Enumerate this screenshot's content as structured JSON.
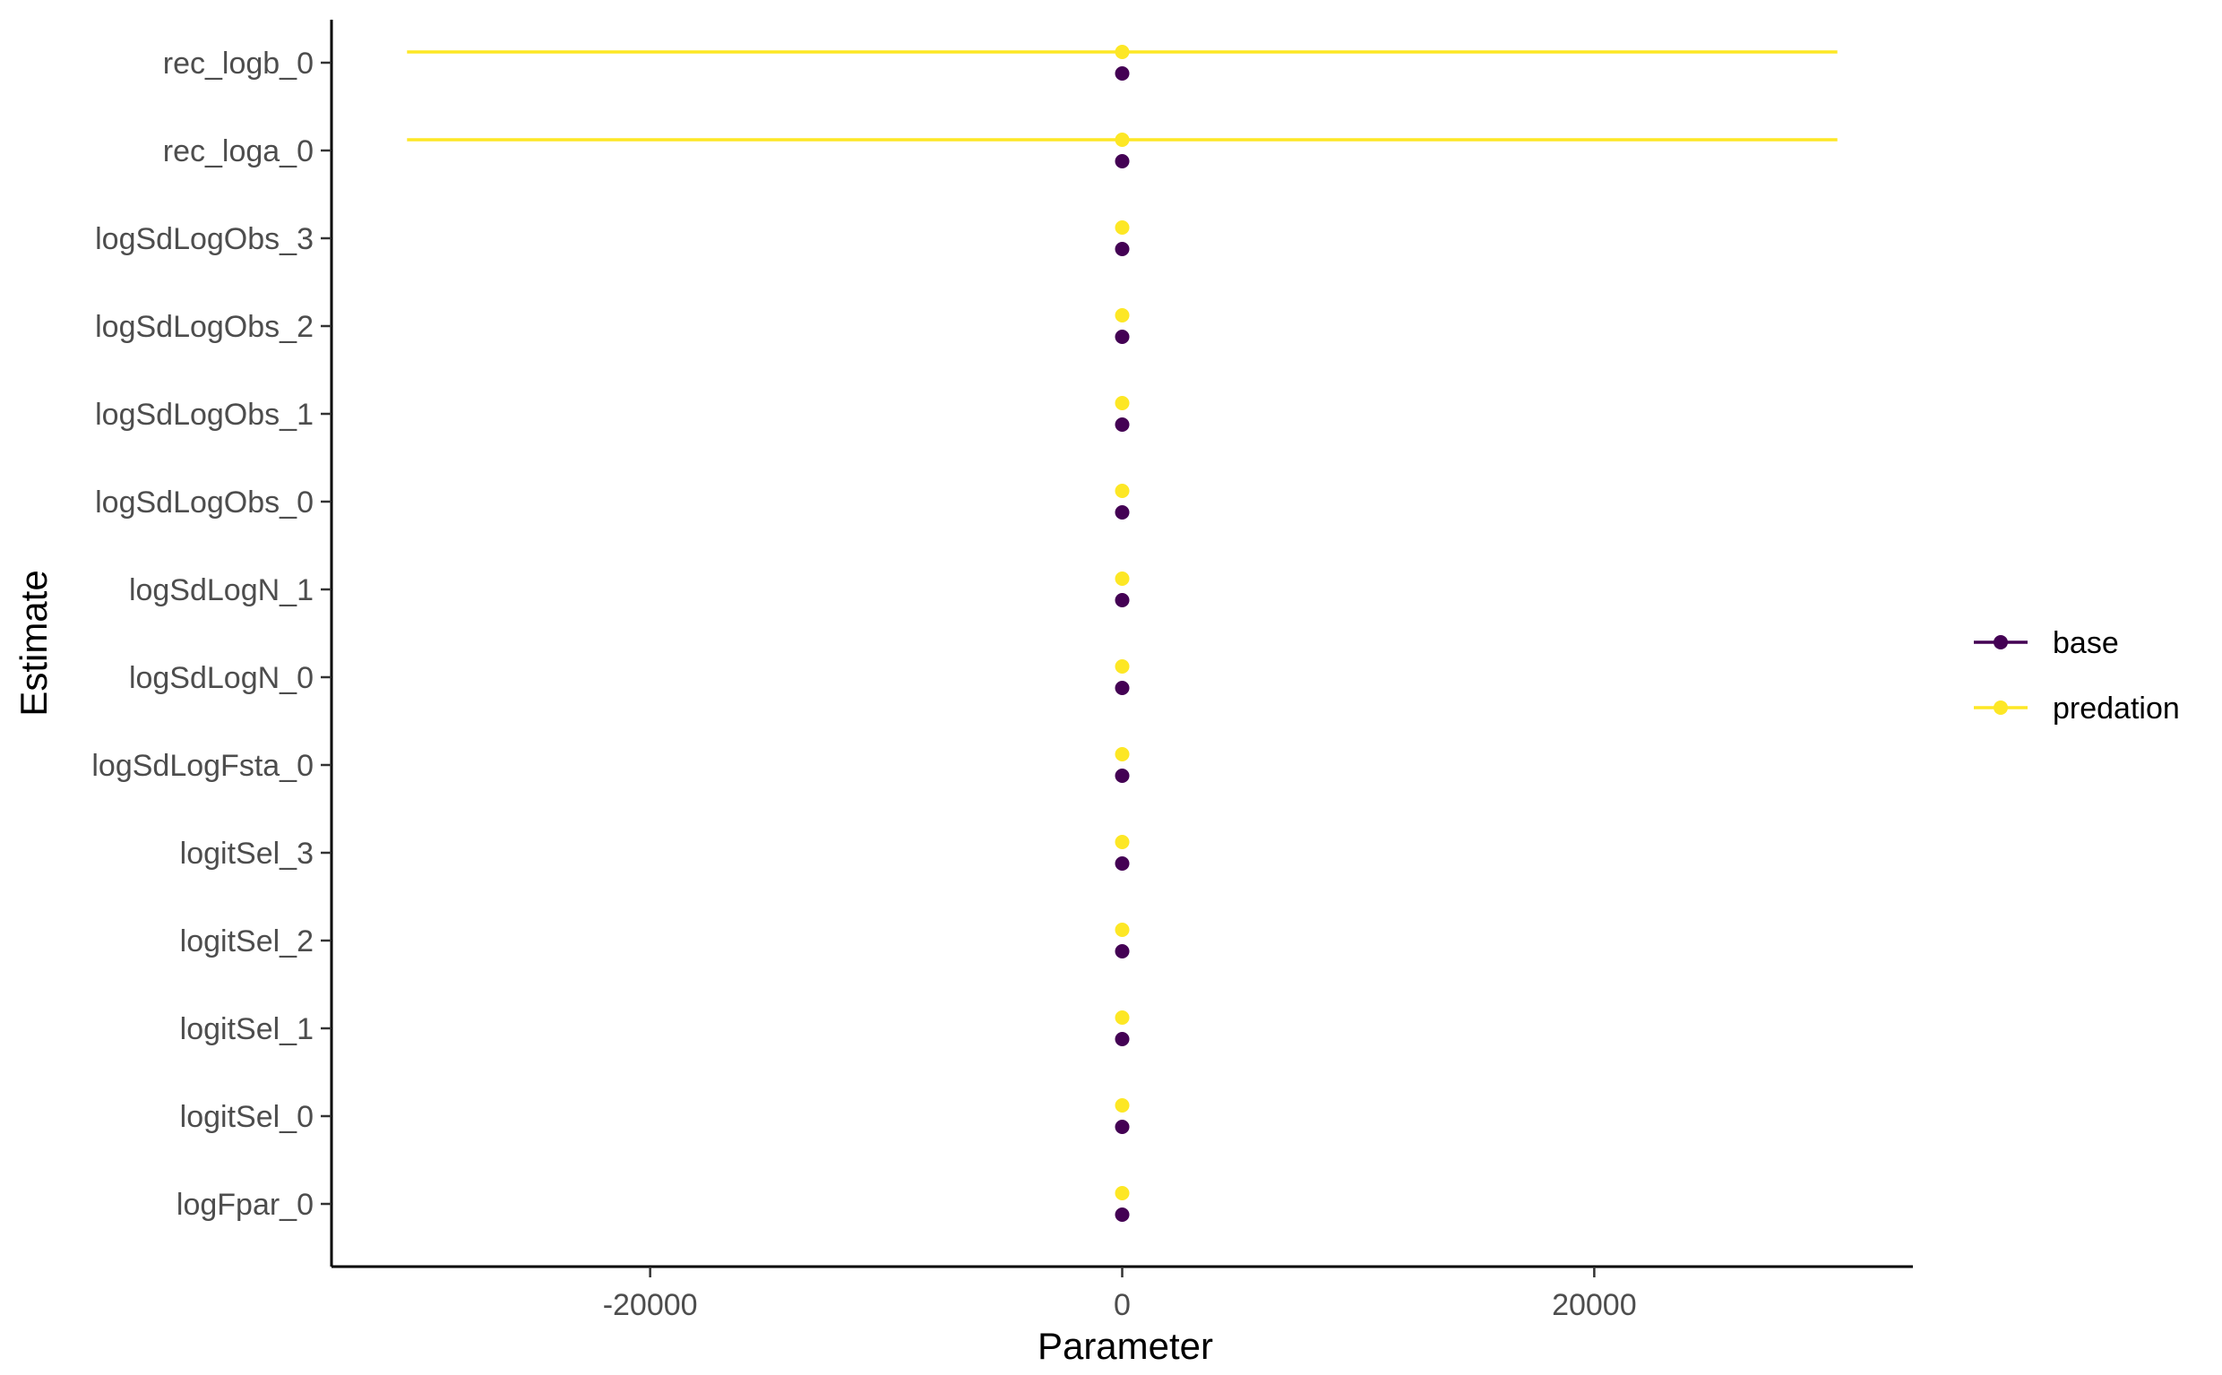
{
  "chart_data": {
    "type": "scatter",
    "title": "",
    "xlabel": "Parameter",
    "ylabel": "Estimate",
    "xlim": [
      -33500,
      33500
    ],
    "x_ticks": [
      -20000,
      0,
      20000
    ],
    "x_tick_labels": [
      "-20000",
      "0",
      "20000"
    ],
    "grid": false,
    "legend_position": "right",
    "categories": [
      "rec_logb_0",
      "rec_loga_0",
      "logSdLogObs_3",
      "logSdLogObs_2",
      "logSdLogObs_1",
      "logSdLogObs_0",
      "logSdLogN_1",
      "logSdLogN_0",
      "logSdLogFsta_0",
      "logitSel_3",
      "logitSel_2",
      "logitSel_1",
      "logitSel_0",
      "logFpar_0"
    ],
    "series": [
      {
        "name": "base",
        "color": "#440154",
        "values": [
          0,
          0,
          0,
          0,
          0,
          0,
          0,
          0,
          0,
          0,
          0,
          0,
          0,
          0
        ],
        "ci_low": [
          null,
          null,
          null,
          null,
          null,
          null,
          null,
          null,
          null,
          null,
          null,
          null,
          null,
          null
        ],
        "ci_high": [
          null,
          null,
          null,
          null,
          null,
          null,
          null,
          null,
          null,
          null,
          null,
          null,
          null,
          null
        ]
      },
      {
        "name": "predation",
        "color": "#FDE725",
        "values": [
          0,
          0,
          0,
          0,
          0,
          0,
          0,
          0,
          0,
          0,
          0,
          0,
          0,
          0
        ],
        "ci_low": [
          -30300,
          -30300,
          null,
          null,
          null,
          null,
          null,
          null,
          null,
          null,
          null,
          null,
          null,
          null
        ],
        "ci_high": [
          30300,
          30300,
          null,
          null,
          null,
          null,
          null,
          null,
          null,
          null,
          null,
          null,
          null,
          null
        ]
      }
    ]
  }
}
